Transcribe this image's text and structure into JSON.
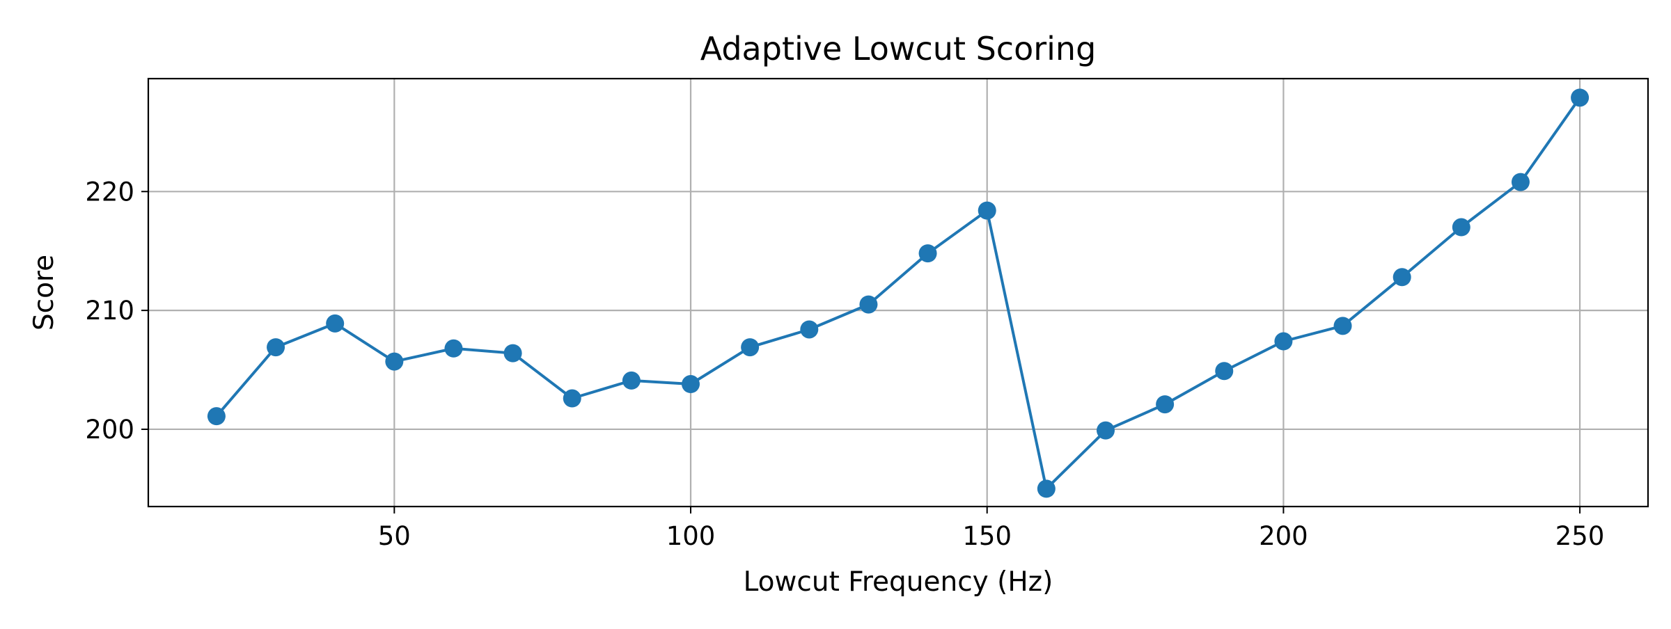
{
  "chart_data": {
    "type": "line",
    "title": "Adaptive Lowcut Scoring",
    "xlabel": "Lowcut Frequency (Hz)",
    "ylabel": "Score",
    "xlim": [
      8.5,
      261.5
    ],
    "ylim": [
      193.5,
      229.5
    ],
    "x_ticks": [
      50,
      100,
      150,
      200,
      250
    ],
    "y_ticks": [
      200,
      210,
      220
    ],
    "grid": true,
    "legend": "none",
    "series": [
      {
        "color": "#1f77b4",
        "marker": "circle",
        "x": [
          20,
          30,
          40,
          50,
          60,
          70,
          80,
          90,
          100,
          110,
          120,
          130,
          140,
          150,
          160,
          170,
          180,
          190,
          200,
          210,
          220,
          230,
          240,
          250
        ],
        "y": [
          201.1,
          206.9,
          208.9,
          205.7,
          206.8,
          206.4,
          202.6,
          204.1,
          203.8,
          206.9,
          208.4,
          210.5,
          214.8,
          218.4,
          195.0,
          199.9,
          202.1,
          204.9,
          207.4,
          208.7,
          212.8,
          217.0,
          220.8,
          227.9
        ]
      }
    ]
  }
}
